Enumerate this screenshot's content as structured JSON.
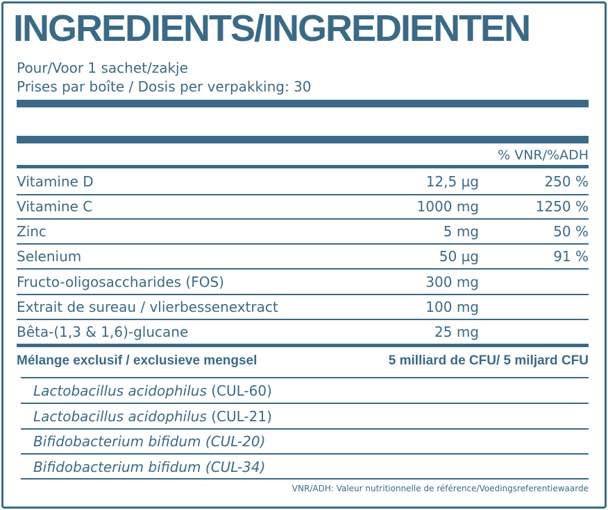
{
  "header": {
    "title": "INGREDIENTS/INGREDIENTEN",
    "serving": "Pour/Voor 1 sachet/zakje",
    "servings_per_box": "Prises par boîte / Dosis per verpakking: 30"
  },
  "table": {
    "column_header": "% VNR/%ADH",
    "rows": [
      {
        "name": "Vitamine D",
        "amount": "12,5 µg",
        "pct": "250 %"
      },
      {
        "name": "Vitamine C",
        "amount": "1000 mg",
        "pct": "1250 %"
      },
      {
        "name": "Zinc",
        "amount": "5 mg",
        "pct": "50 %"
      },
      {
        "name": "Selenium",
        "amount": "50 µg",
        "pct": "91 %"
      },
      {
        "name": "Fructo-oligosaccharides (FOS)",
        "amount": "300 mg",
        "pct": ""
      },
      {
        "name": "Extrait de sureau / vlierbessenextract",
        "amount": "100 mg",
        "pct": ""
      },
      {
        "name": "Bêta-(1,3 & 1,6)-glucane",
        "amount": "25 mg",
        "pct": ""
      }
    ],
    "blend": {
      "name": "Mélange exclusif / exclusieve mengsel",
      "amount": "5 milliard de CFU/ 5 miljard CFU"
    },
    "strains": [
      {
        "species": "Lactobacillus acidophilus",
        "code": " (CUL-60)"
      },
      {
        "species": "Lactobacillus acidophilus",
        "code": " (CUL-21)"
      },
      {
        "species": "Bifidobacterium bifidum (CUL-20)",
        "code": ""
      },
      {
        "species": "Bifidobacterium bifidum (CUL-34)",
        "code": ""
      }
    ]
  },
  "footnote": "VNR/ADH: Valeur nutritionnelle de référence/Voedingsreferentiewaarde",
  "colors": {
    "brand": "#3b6a86",
    "background": "#ffffff"
  }
}
